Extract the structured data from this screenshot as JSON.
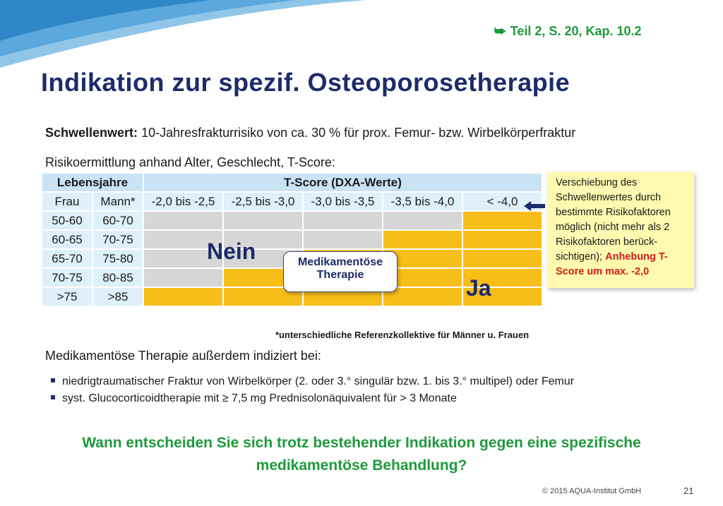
{
  "colors": {
    "nein": "#d6d6d6",
    "ja": "#f7bd19",
    "header": "#c9e3f5",
    "accent_green": "#1e9a3c",
    "title_blue": "#1d2b6b",
    "note_yellow": "#fffab0"
  },
  "reference": {
    "icon": "arrow-return-icon",
    "text": "Teil  2, S. 20, Kap. 10.2"
  },
  "title": "Indikation zur spezif. Osteoporosetherapie",
  "threshold": {
    "label": "Schwellenwert:",
    "text": "10-Jahresfrakturrisiko von ca. 30 % für prox. Femur- bzw. Wirbelkörperfraktur"
  },
  "risk_line": "Risikoermittlung anhand Alter, Geschlecht, T-Score:",
  "table": {
    "age_header": "Lebensjahre",
    "tscore_header": "T-Score (DXA-Werte)",
    "col_frau": "Frau",
    "col_mann": "Mann*",
    "tscore_cols": [
      "-2,0 bis -2,5",
      "-2,5 bis -3,0",
      "-3,0 bis -3,5",
      "-3,5 bis -4,0",
      "< -4,0"
    ],
    "rows": [
      {
        "frau": "50-60",
        "mann": "60-70",
        "cells": [
          "nein",
          "nein",
          "nein",
          "nein",
          "ja"
        ]
      },
      {
        "frau": "60-65",
        "mann": "70-75",
        "cells": [
          "nein",
          "nein",
          "nein",
          "ja",
          "ja"
        ]
      },
      {
        "frau": "65-70",
        "mann": "75-80",
        "cells": [
          "nein",
          "nein",
          "ja",
          "ja",
          "ja"
        ]
      },
      {
        "frau": "70-75",
        "mann": "80-85",
        "cells": [
          "nein",
          "ja",
          "ja",
          "ja",
          "ja"
        ]
      },
      {
        "frau": ">75",
        "mann": ">85",
        "cells": [
          "ja",
          "ja",
          "ja",
          "ja",
          "ja"
        ]
      }
    ],
    "nein_label": "Nein",
    "ja_label": "Ja",
    "therapy_box_line1": "Medikamentöse",
    "therapy_box_line2": "Therapie",
    "footnote": "*unterschiedliche Referenzkollektive für Männer u. Frauen"
  },
  "side_note": {
    "text": "Verschiebung des Schwellenwertes durch bestimmte Risikofaktoren möglich (nicht mehr als 2 Risikofaktoren berück-sichtigen);",
    "highlight": "Anhebung T-Score um max. -2,0"
  },
  "additional": {
    "heading": "Medikamentöse Therapie außerdem indiziert bei:",
    "bullets": [
      "niedrigtraumatischer Fraktur von Wirbelkörper (2. oder 3.° singulär bzw. 1. bis 3.° multipel) oder Femur",
      "syst. Glucocorticoidtherapie mit ≥ 7,5 mg Prednisolonäquivalent für > 3 Monate"
    ]
  },
  "question_line1": "Wann entscheiden Sie sich trotz bestehender Indikation gegen eine spezifische",
  "question_line2": "medikamentöse Behandlung?",
  "footer": "© 2015 AQUA-Institut GmbH",
  "page_number": "21"
}
